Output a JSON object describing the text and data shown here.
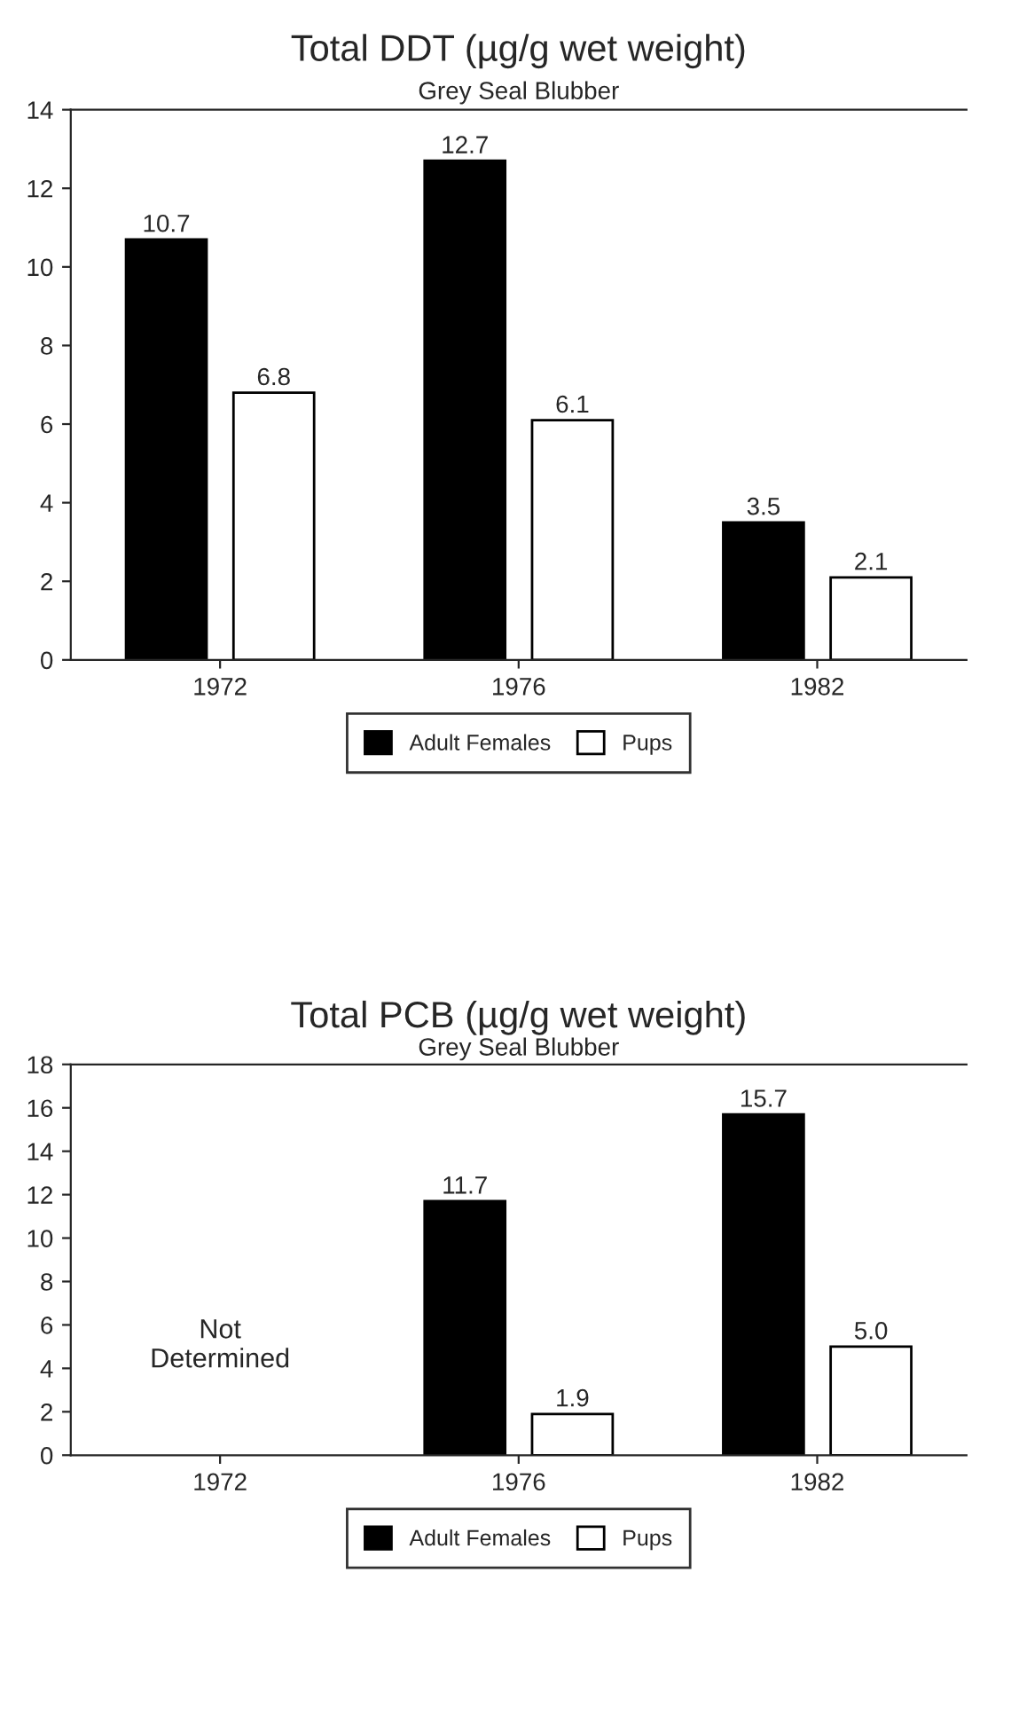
{
  "chart_data": [
    {
      "type": "bar",
      "title": "Total DDT (µg/g wet weight)",
      "subtitle": "Grey Seal Blubber",
      "categories": [
        "1972",
        "1976",
        "1982"
      ],
      "series": [
        {
          "name": "Adult Females",
          "color": "#000000",
          "values": [
            10.7,
            12.7,
            3.5
          ],
          "value_labels": [
            "10.7",
            "12.7",
            "3.5"
          ]
        },
        {
          "name": "Pups",
          "color": "#ffffff",
          "values": [
            6.8,
            6.1,
            2.1
          ],
          "value_labels": [
            "6.8",
            "6.1",
            "2.1"
          ]
        }
      ],
      "ylim": [
        0,
        14
      ],
      "yticks": [
        0,
        2,
        4,
        6,
        8,
        10,
        12,
        14
      ],
      "grid": false,
      "legend": "bottom"
    },
    {
      "type": "bar",
      "title": "Total PCB (µg/g wet weight)",
      "subtitle": "Grey Seal Blubber",
      "categories": [
        "1972",
        "1976",
        "1982"
      ],
      "series": [
        {
          "name": "Adult Females",
          "color": "#000000",
          "values": [
            null,
            11.7,
            15.7
          ],
          "value_labels": [
            null,
            "11.7",
            "15.7"
          ]
        },
        {
          "name": "Pups",
          "color": "#ffffff",
          "values": [
            null,
            1.9,
            5.0
          ],
          "value_labels": [
            null,
            "1.9",
            "5.0"
          ]
        }
      ],
      "annotations": [
        "Not\nDetermined"
      ],
      "ylim": [
        0,
        18
      ],
      "yticks": [
        0,
        2,
        4,
        6,
        8,
        10,
        12,
        14,
        16,
        18
      ],
      "grid": false,
      "legend": "bottom"
    }
  ]
}
